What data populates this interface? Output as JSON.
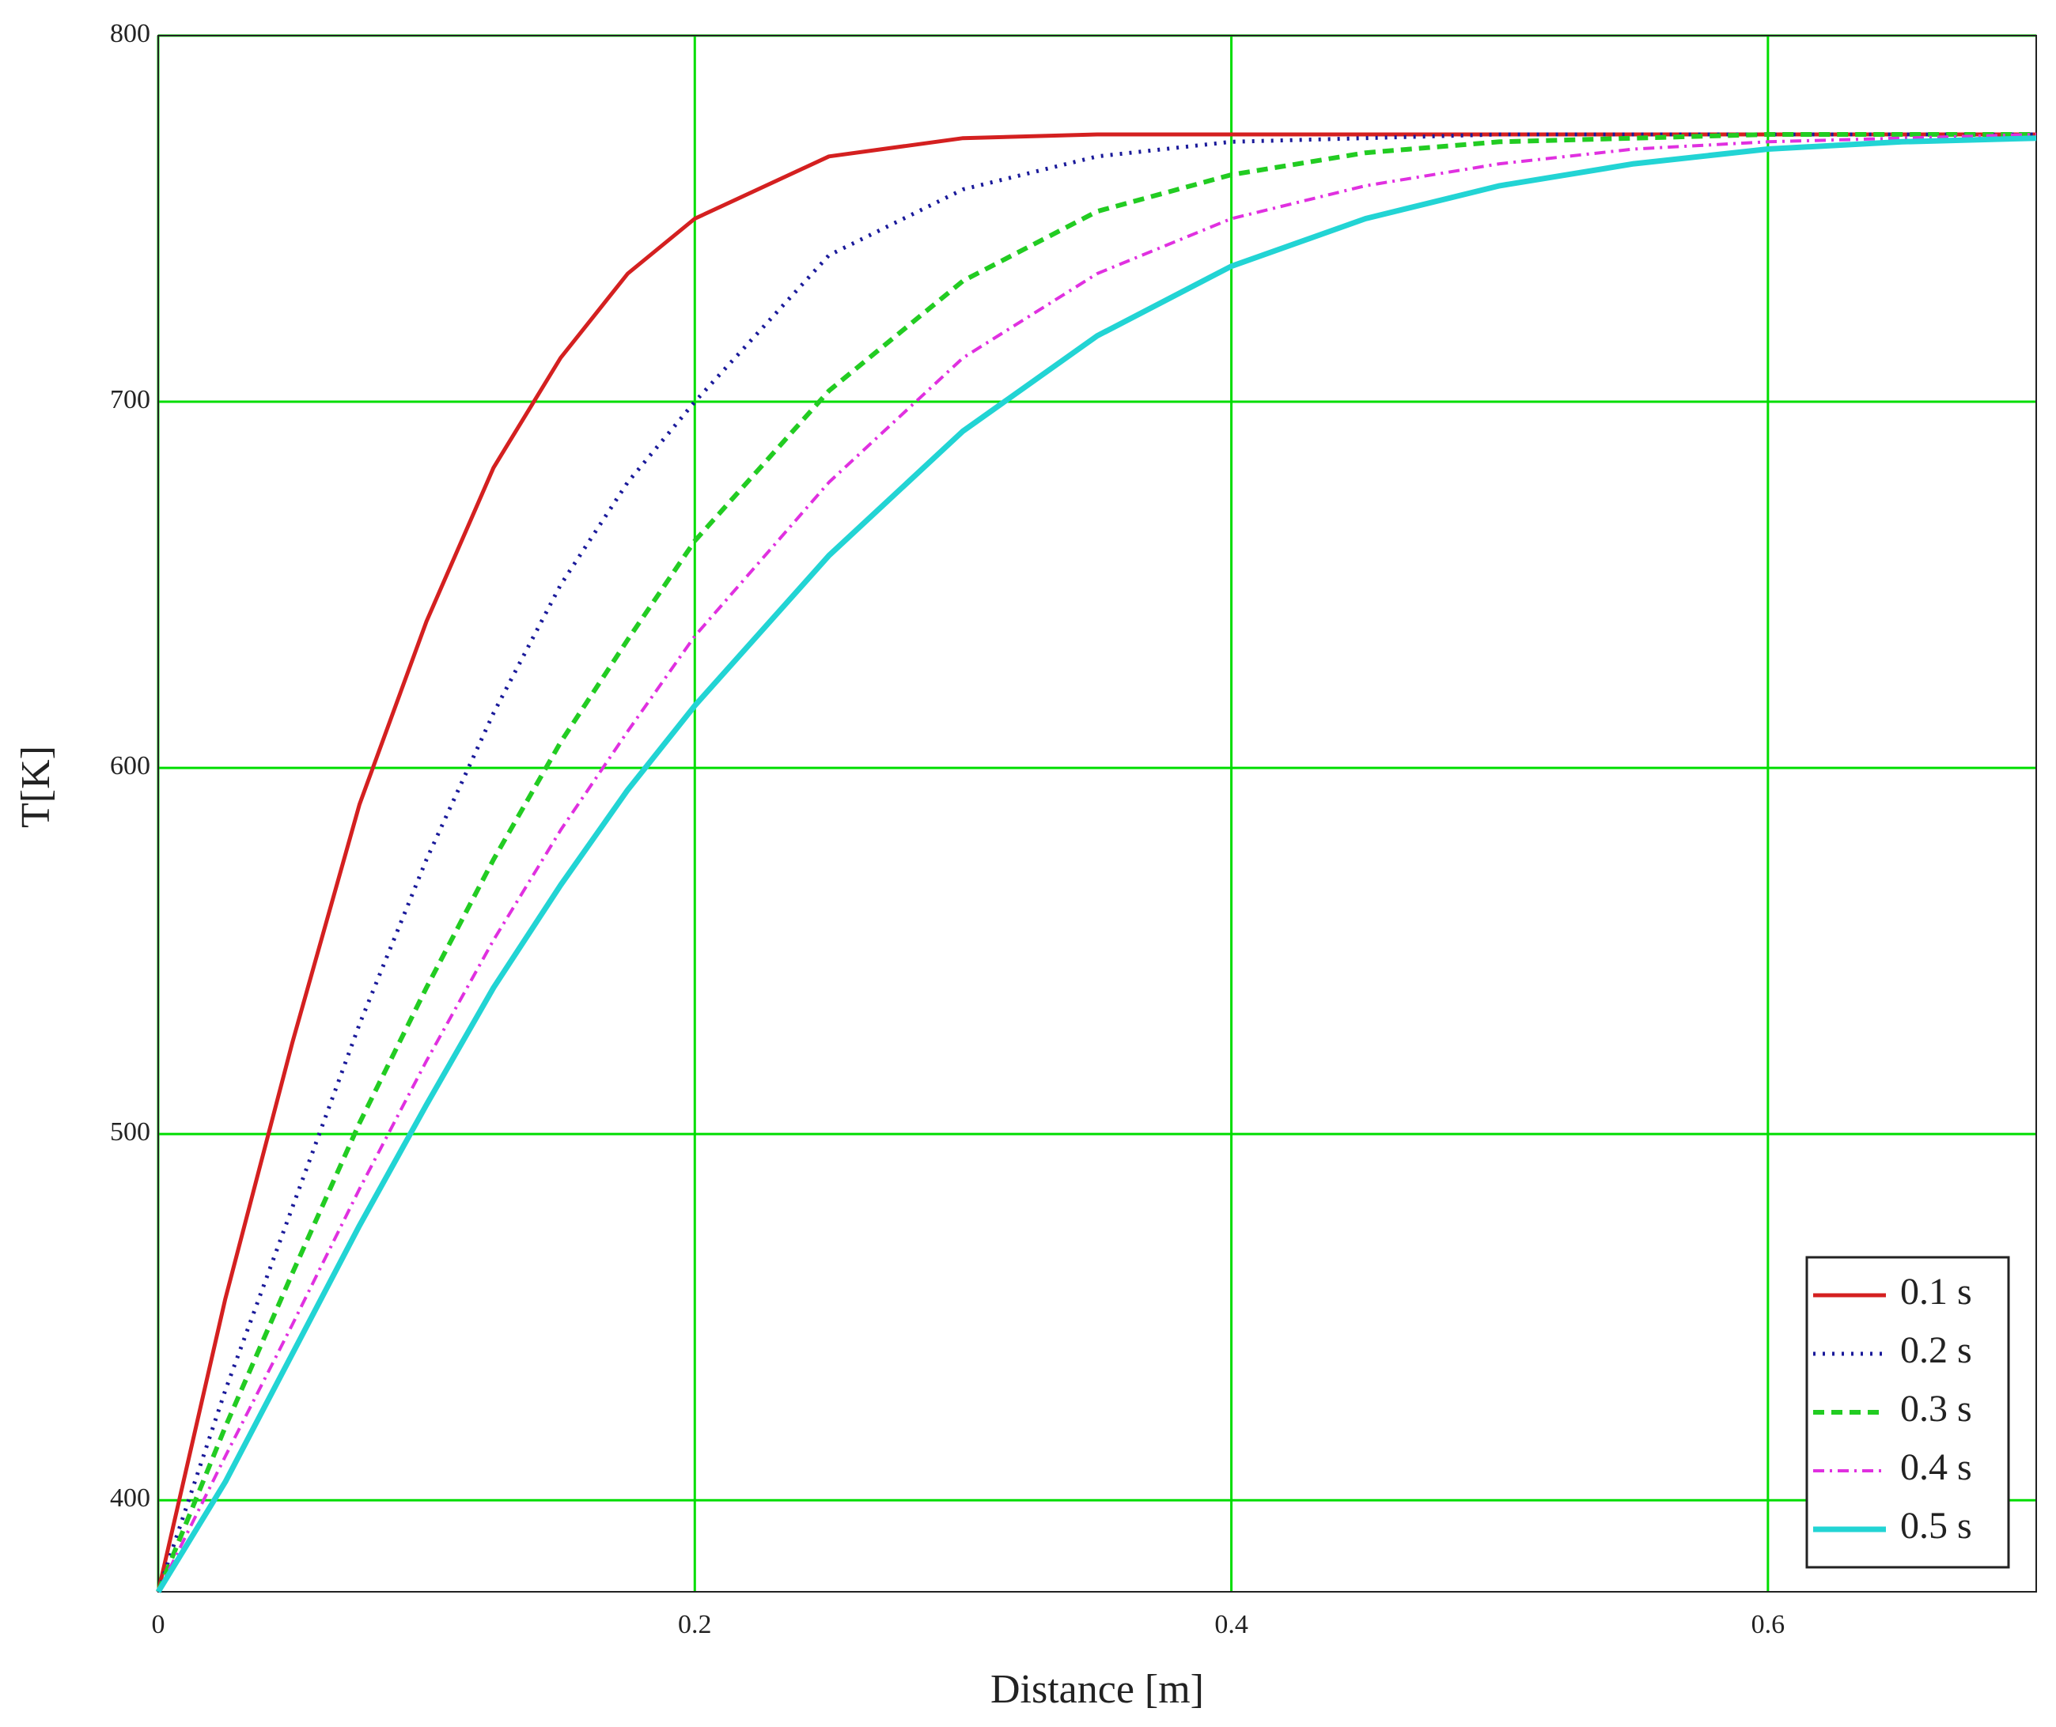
{
  "chart_data": {
    "type": "line",
    "x_label": "Distance [m]",
    "y_label": "T[K]",
    "x": [
      0,
      0.025,
      0.05,
      0.075,
      0.1,
      0.125,
      0.15,
      0.175,
      0.2,
      0.25,
      0.3,
      0.35,
      0.4,
      0.45,
      0.5,
      0.55,
      0.6,
      0.65,
      0.7
    ],
    "series": [
      {
        "name": "0.1 s",
        "color": "#d42020",
        "dash": "solid",
        "values": [
          375,
          455,
          525,
          590,
          640,
          682,
          712,
          735,
          750,
          767,
          772,
          773,
          773,
          773,
          773,
          773,
          773,
          773,
          773
        ]
      },
      {
        "name": "0.2 s",
        "color": "#1a1a9a",
        "dash": "dotted",
        "values": [
          375,
          430,
          480,
          530,
          575,
          615,
          650,
          678,
          700,
          740,
          758,
          767,
          771,
          772,
          773,
          773,
          773,
          773,
          773
        ]
      },
      {
        "name": "0.3 s",
        "color": "#22cc22",
        "dash": "dashed",
        "values": [
          375,
          420,
          462,
          503,
          540,
          575,
          607,
          635,
          662,
          703,
          733,
          752,
          762,
          768,
          771,
          772,
          773,
          773,
          773
        ]
      },
      {
        "name": "0.4 s",
        "color": "#e030e0",
        "dash": "dashdot",
        "values": [
          375,
          412,
          448,
          485,
          520,
          553,
          583,
          610,
          636,
          678,
          712,
          735,
          750,
          759,
          765,
          769,
          771,
          772,
          773
        ]
      },
      {
        "name": "0.5 s",
        "color": "#22d4d4",
        "dash": "thick",
        "values": [
          375,
          405,
          440,
          475,
          508,
          540,
          568,
          594,
          617,
          658,
          692,
          718,
          737,
          750,
          759,
          765,
          769,
          771,
          772
        ]
      }
    ],
    "xlim": [
      0,
      0.7
    ],
    "ylim": [
      375,
      800
    ],
    "xticks": [
      0,
      0.2,
      0.4,
      0.6
    ],
    "yticks": [
      400,
      500,
      600,
      700,
      800
    ],
    "grid": true,
    "grid_color": "#00dd00",
    "legend": "lower right"
  }
}
